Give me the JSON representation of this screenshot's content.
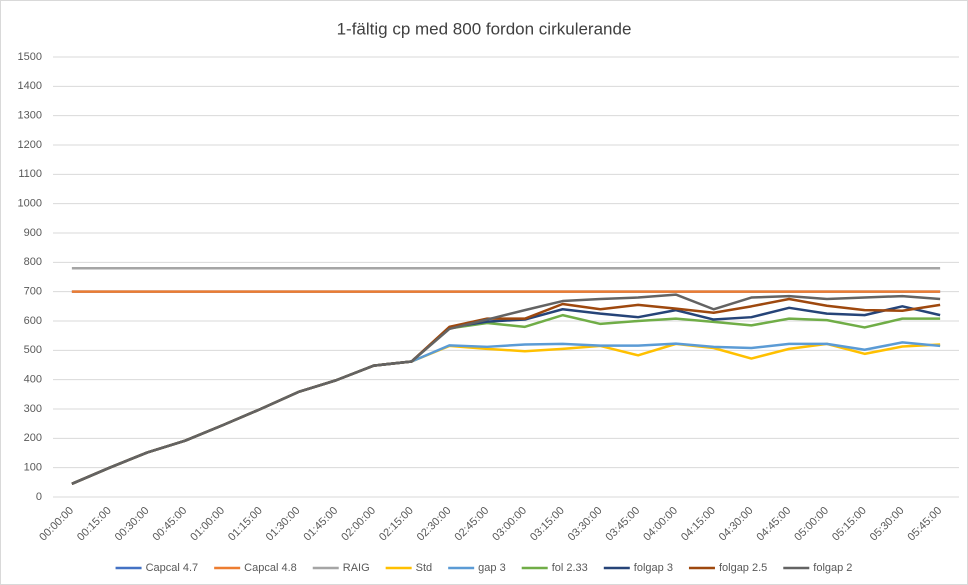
{
  "chart_data": {
    "type": "line",
    "title": "1-fältig cp med 800 fordon cirkulerande",
    "categories": [
      "00:00:00",
      "00:15:00",
      "00:30:00",
      "00:45:00",
      "01:00:00",
      "01:15:00",
      "01:30:00",
      "01:45:00",
      "02:00:00",
      "02:15:00",
      "02:30:00",
      "02:45:00",
      "03:00:00",
      "03:15:00",
      "03:30:00",
      "03:45:00",
      "04:00:00",
      "04:15:00",
      "04:30:00",
      "04:45:00",
      "05:00:00",
      "05:15:00",
      "05:30:00",
      "05:45:00"
    ],
    "ylim": [
      0,
      1500
    ],
    "yticks": [
      0,
      100,
      200,
      300,
      400,
      500,
      600,
      700,
      800,
      900,
      1000,
      1100,
      1200,
      1300,
      1400,
      1500
    ],
    "grid": true,
    "series": [
      {
        "name": "Capcal 4.7",
        "color": "#4472c4",
        "values": [
          700,
          700,
          700,
          700,
          700,
          700,
          700,
          700,
          700,
          700,
          700,
          700,
          700,
          700,
          700,
          700,
          700,
          700,
          700,
          700,
          700,
          700,
          700,
          700
        ]
      },
      {
        "name": "Capcal 4.8",
        "color": "#ed7d31",
        "values": [
          700,
          700,
          700,
          700,
          700,
          700,
          700,
          700,
          700,
          700,
          700,
          700,
          700,
          700,
          700,
          700,
          700,
          700,
          700,
          700,
          700,
          700,
          700,
          700
        ]
      },
      {
        "name": "RAIG",
        "color": "#a5a5a5",
        "values": [
          780,
          780,
          780,
          780,
          780,
          780,
          780,
          780,
          780,
          780,
          780,
          780,
          780,
          780,
          780,
          780,
          780,
          780,
          780,
          780,
          780,
          780,
          780,
          780
        ]
      },
      {
        "name": "Std",
        "color": "#ffc000",
        "values": [
          45,
          100,
          152,
          192,
          245,
          300,
          358,
          398,
          448,
          462,
          515,
          505,
          497,
          505,
          515,
          483,
          522,
          508,
          472,
          505,
          522,
          488,
          513,
          520
        ]
      },
      {
        "name": "gap 3",
        "color": "#5b9bd5",
        "values": [
          45,
          100,
          152,
          192,
          245,
          300,
          358,
          398,
          448,
          462,
          517,
          512,
          520,
          522,
          516,
          516,
          523,
          512,
          508,
          522,
          522,
          502,
          527,
          515
        ]
      },
      {
        "name": "fol 2.33",
        "color": "#70ad47",
        "values": [
          45,
          100,
          152,
          192,
          245,
          300,
          358,
          398,
          448,
          462,
          575,
          593,
          580,
          620,
          590,
          600,
          608,
          597,
          585,
          608,
          603,
          578,
          608,
          608
        ]
      },
      {
        "name": "folgap 3",
        "color": "#264478",
        "values": [
          45,
          100,
          152,
          192,
          245,
          300,
          358,
          398,
          448,
          462,
          578,
          598,
          605,
          640,
          625,
          613,
          637,
          605,
          613,
          645,
          625,
          620,
          650,
          620
        ]
      },
      {
        "name": "folgap 2.5",
        "color": "#9e480e",
        "values": [
          45,
          100,
          152,
          192,
          245,
          300,
          358,
          398,
          448,
          462,
          580,
          608,
          608,
          658,
          640,
          655,
          642,
          628,
          650,
          675,
          652,
          637,
          635,
          655
        ]
      },
      {
        "name": "folgap 2",
        "color": "#636363",
        "values": [
          45,
          100,
          152,
          192,
          245,
          300,
          358,
          398,
          448,
          462,
          573,
          605,
          637,
          668,
          675,
          680,
          690,
          640,
          680,
          685,
          675,
          680,
          685,
          675
        ]
      }
    ]
  }
}
